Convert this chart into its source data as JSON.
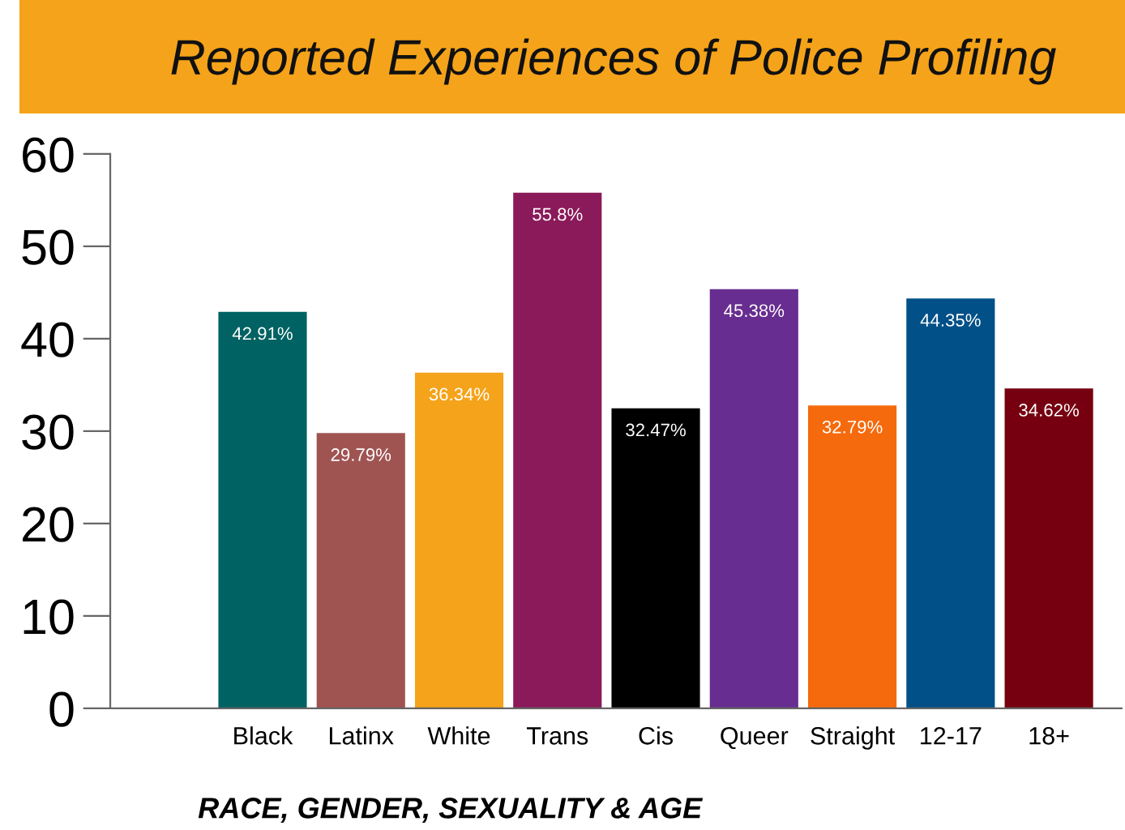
{
  "chart_data": {
    "type": "bar",
    "title": "Reported Experiences of Police Profiling",
    "xlabel": "RACE, GENDER, SEXUALITY & AGE",
    "categories": [
      "Black",
      "Latinx",
      "White",
      "Trans",
      "Cis",
      "Queer",
      "Straight",
      "12-17",
      "18+"
    ],
    "values": [
      42.91,
      29.79,
      36.34,
      55.8,
      32.47,
      45.38,
      32.79,
      44.35,
      34.62
    ],
    "value_labels": [
      "42.91%",
      "29.79%",
      "36.34%",
      "55.8%",
      "32.47%",
      "45.38%",
      "32.79%",
      "44.35%",
      "34.62%"
    ],
    "colors": [
      "#006262",
      "#a05452",
      "#f5a31a",
      "#8b1a5a",
      "#000000",
      "#682d90",
      "#f56a0c",
      "#015088",
      "#760010"
    ],
    "ylim": [
      0,
      60
    ],
    "yticks": [
      0,
      10,
      20,
      30,
      40,
      50,
      60
    ],
    "grid": false,
    "legend": false
  }
}
